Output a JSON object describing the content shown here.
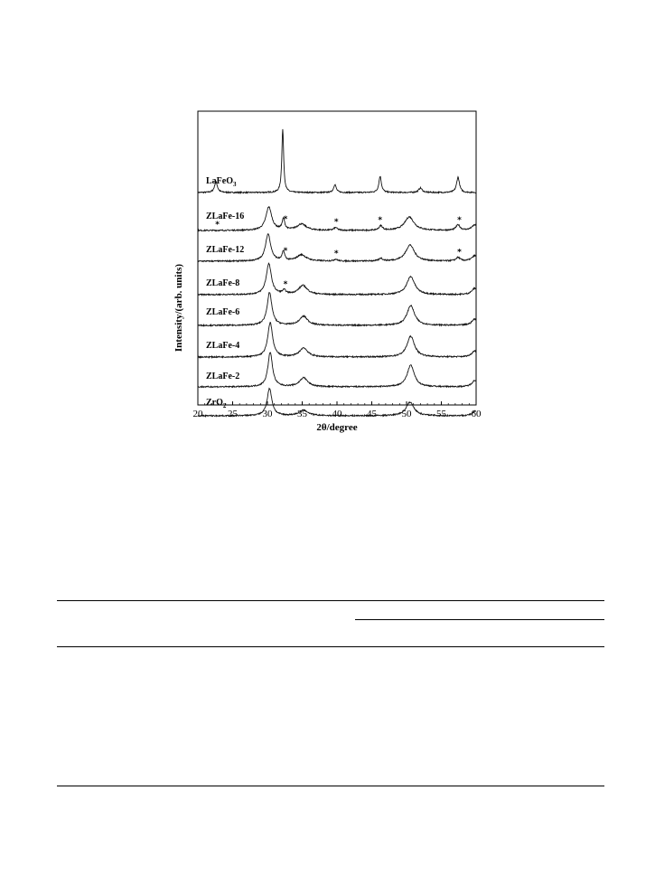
{
  "chart_data": {
    "type": "line",
    "xlabel": "2θ/degree",
    "ylabel": "Intensity/(arb. units)",
    "xlim": [
      20,
      60
    ],
    "xticks": [
      20,
      25,
      30,
      35,
      40,
      45,
      50,
      55,
      60
    ],
    "grid": false,
    "marker_symbol": "*",
    "series": [
      {
        "name": "LaFeO3",
        "label_main": "LaFeO",
        "label_sub": "3",
        "base": 0,
        "peaks": [
          [
            22.6,
            12,
            0.25
          ],
          [
            32.2,
            70,
            0.16
          ],
          [
            39.7,
            9,
            0.22
          ],
          [
            46.2,
            18,
            0.22
          ],
          [
            52.0,
            5,
            0.3
          ],
          [
            57.4,
            17,
            0.25
          ]
        ],
        "stars": []
      },
      {
        "name": "ZLaFe-16",
        "base": 0,
        "peaks": [
          [
            30.2,
            26,
            0.5
          ],
          [
            32.3,
            12,
            0.22
          ],
          [
            34.9,
            7,
            0.8
          ],
          [
            39.8,
            3,
            0.3
          ],
          [
            46.3,
            5,
            0.3
          ],
          [
            50.4,
            15,
            0.8
          ],
          [
            57.4,
            6,
            0.35
          ],
          [
            59.8,
            6,
            0.5
          ]
        ],
        "stars": [
          22.8,
          32.6,
          39.9,
          46.2,
          57.6
        ]
      },
      {
        "name": "ZLaFe-12",
        "base": 0,
        "peaks": [
          [
            30.1,
            30,
            0.45
          ],
          [
            32.3,
            10,
            0.22
          ],
          [
            34.9,
            7,
            0.8
          ],
          [
            39.8,
            2,
            0.3
          ],
          [
            46.3,
            3,
            0.3
          ],
          [
            50.5,
            18,
            0.75
          ],
          [
            57.4,
            4,
            0.35
          ],
          [
            59.8,
            6,
            0.5
          ]
        ],
        "stars": [
          32.6,
          39.9,
          57.6
        ]
      },
      {
        "name": "ZLaFe-8",
        "base": 0,
        "peaks": [
          [
            30.2,
            34,
            0.45
          ],
          [
            32.4,
            4,
            0.3
          ],
          [
            35.1,
            10,
            0.75
          ],
          [
            50.6,
            20,
            0.7
          ],
          [
            59.8,
            7,
            0.5
          ]
        ],
        "stars": [
          32.6
        ]
      },
      {
        "name": "ZLaFe-6",
        "base": 0,
        "peaks": [
          [
            30.3,
            36,
            0.42
          ],
          [
            35.2,
            10,
            0.7
          ],
          [
            50.6,
            22,
            0.65
          ],
          [
            59.8,
            7,
            0.5
          ]
        ],
        "stars": []
      },
      {
        "name": "ZLaFe-4",
        "base": 0,
        "peaks": [
          [
            30.4,
            38,
            0.42
          ],
          [
            35.2,
            10,
            0.7
          ],
          [
            50.6,
            23,
            0.65
          ],
          [
            59.8,
            7,
            0.5
          ]
        ],
        "stars": []
      },
      {
        "name": "ZLaFe-2",
        "base": 0,
        "peaks": [
          [
            30.4,
            38,
            0.4
          ],
          [
            35.2,
            10,
            0.7
          ],
          [
            50.6,
            24,
            0.62
          ],
          [
            59.8,
            7,
            0.5
          ]
        ],
        "stars": []
      },
      {
        "name": "ZrO2",
        "label_main": "ZrO",
        "label_sub": "2",
        "base": 0,
        "peaks": [
          [
            30.3,
            30,
            0.42
          ],
          [
            35.2,
            6,
            0.8
          ],
          [
            50.5,
            15,
            0.7
          ],
          [
            59.9,
            5,
            0.5
          ]
        ],
        "stars": []
      }
    ]
  }
}
